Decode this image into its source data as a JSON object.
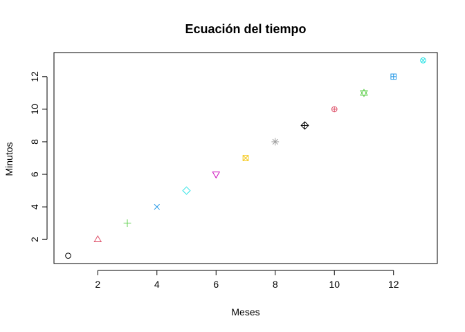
{
  "chart_data": {
    "type": "scatter",
    "title": "Ecuación del tiempo",
    "xlabel": "Meses",
    "ylabel": "Minutos",
    "xlim": [
      0.52,
      13.48
    ],
    "ylim": [
      0.52,
      13.48
    ],
    "x_ticks": [
      2,
      4,
      6,
      8,
      10,
      12
    ],
    "y_ticks": [
      2,
      4,
      6,
      8,
      10,
      12
    ],
    "grid": false,
    "legend": "none",
    "points": [
      {
        "x": 1,
        "y": 1,
        "pch": 1,
        "color": "#000000"
      },
      {
        "x": 2,
        "y": 2,
        "pch": 2,
        "color": "#DF536B"
      },
      {
        "x": 3,
        "y": 3,
        "pch": 3,
        "color": "#61D04F"
      },
      {
        "x": 4,
        "y": 4,
        "pch": 4,
        "color": "#2297E6"
      },
      {
        "x": 5,
        "y": 5,
        "pch": 5,
        "color": "#28E2E5"
      },
      {
        "x": 6,
        "y": 6,
        "pch": 6,
        "color": "#CD0BBC"
      },
      {
        "x": 7,
        "y": 7,
        "pch": 7,
        "color": "#F5C710"
      },
      {
        "x": 8,
        "y": 8,
        "pch": 8,
        "color": "#9E9E9E"
      },
      {
        "x": 9,
        "y": 9,
        "pch": 9,
        "color": "#000000"
      },
      {
        "x": 10,
        "y": 10,
        "pch": 10,
        "color": "#DF536B"
      },
      {
        "x": 11,
        "y": 11,
        "pch": 11,
        "color": "#61D04F"
      },
      {
        "x": 12,
        "y": 12,
        "pch": 12,
        "color": "#2297E6"
      },
      {
        "x": 13,
        "y": 13,
        "pch": 13,
        "color": "#28E2E5"
      }
    ]
  }
}
